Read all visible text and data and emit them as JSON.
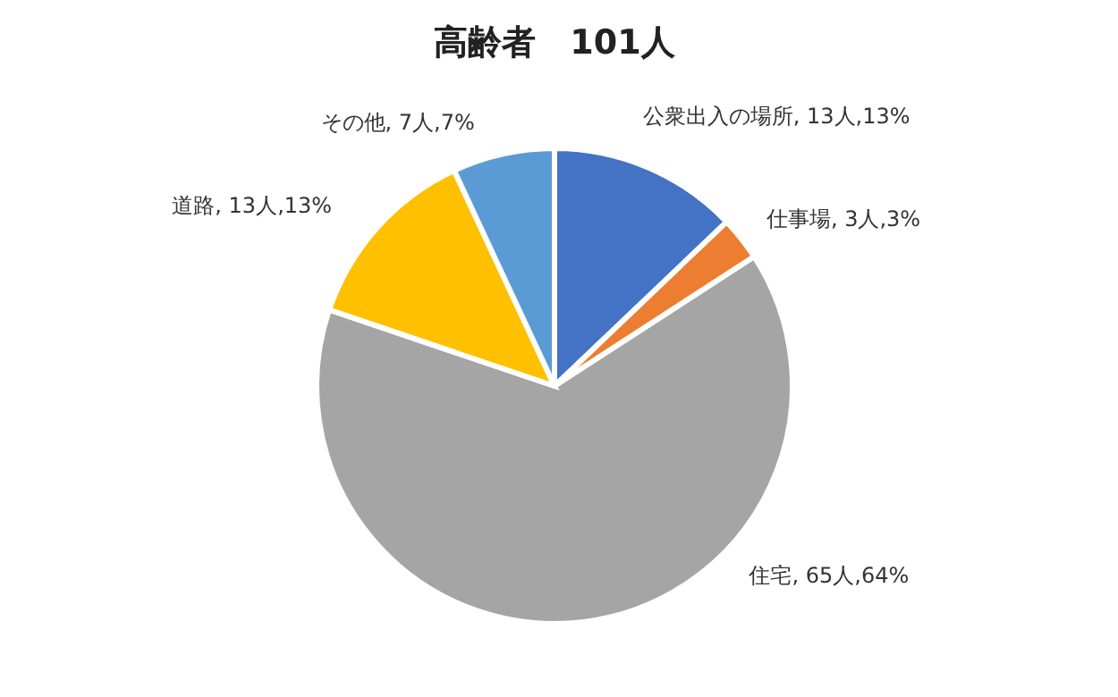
{
  "chart_data": {
    "type": "pie",
    "title": "高齢者　101人",
    "categories": [
      "公衆出入の場所",
      "仕事場",
      "住宅",
      "道路",
      "その他"
    ],
    "values": [
      13,
      3,
      65,
      13,
      7
    ],
    "value_labels": [
      "13人,13%",
      "3人,3%",
      "65人,64%",
      "13人,13%",
      "7人,7%"
    ],
    "colors": [
      "#4472c4",
      "#ed7d31",
      "#a5a5a5",
      "#ffc000",
      "#5b9bd5"
    ],
    "legend": false
  }
}
